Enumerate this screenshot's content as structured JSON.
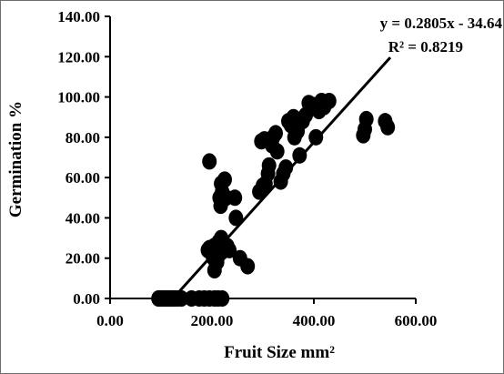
{
  "chart_data": {
    "type": "scatter",
    "title": "",
    "xlabel": "Fruit Size mm²",
    "ylabel": "Germination %",
    "xlim": [
      0,
      600
    ],
    "ylim": [
      0,
      140
    ],
    "xticks": [
      "0.00",
      "200.00",
      "400.00",
      "600.00"
    ],
    "yticks": [
      "0.00",
      "20.00",
      "40.00",
      "60.00",
      "80.00",
      "100.00",
      "120.00",
      "140.00"
    ],
    "grid": false,
    "legend": "none",
    "marker_color": "#000000",
    "trendline": {
      "equation": "y = 0.2805x - 34.64",
      "r_squared": "R² = 0.8219",
      "slope": 0.2805,
      "intercept": -34.64,
      "x_range": [
        123.5,
        550
      ]
    },
    "series": [
      {
        "points": [
          [
            95,
            0
          ],
          [
            100,
            0
          ],
          [
            105,
            0
          ],
          [
            110,
            0
          ],
          [
            115,
            0
          ],
          [
            118,
            0
          ],
          [
            122,
            0
          ],
          [
            127,
            0
          ],
          [
            133,
            0
          ],
          [
            140,
            0
          ],
          [
            160,
            0
          ],
          [
            175,
            0
          ],
          [
            185,
            0
          ],
          [
            195,
            0
          ],
          [
            205,
            0
          ],
          [
            212,
            0
          ],
          [
            220,
            0
          ],
          [
            195,
            68
          ],
          [
            195,
            25
          ],
          [
            192,
            24
          ],
          [
            200,
            22
          ],
          [
            203,
            20
          ],
          [
            204,
            26
          ],
          [
            205,
            14
          ],
          [
            210,
            18
          ],
          [
            212,
            21
          ],
          [
            213,
            28
          ],
          [
            215,
            24
          ],
          [
            218,
            30
          ],
          [
            219,
            23
          ],
          [
            220,
            25
          ],
          [
            215,
            50
          ],
          [
            217,
            46
          ],
          [
            218,
            57
          ],
          [
            220,
            53
          ],
          [
            222,
            49
          ],
          [
            225,
            59
          ],
          [
            228,
            50
          ],
          [
            230,
            26
          ],
          [
            234,
            24
          ],
          [
            245,
            50
          ],
          [
            247,
            40
          ],
          [
            255,
            20
          ],
          [
            270,
            16
          ],
          [
            293,
            53
          ],
          [
            297,
            78
          ],
          [
            300,
            56
          ],
          [
            303,
            79
          ],
          [
            305,
            57
          ],
          [
            310,
            62
          ],
          [
            312,
            66
          ],
          [
            318,
            76
          ],
          [
            320,
            80
          ],
          [
            325,
            82
          ],
          [
            328,
            73
          ],
          [
            335,
            58
          ],
          [
            340,
            62
          ],
          [
            345,
            65
          ],
          [
            350,
            88
          ],
          [
            355,
            86
          ],
          [
            360,
            90
          ],
          [
            362,
            80
          ],
          [
            368,
            83
          ],
          [
            372,
            71
          ],
          [
            378,
            88
          ],
          [
            384,
            91
          ],
          [
            390,
            97
          ],
          [
            398,
            96
          ],
          [
            404,
            80
          ],
          [
            410,
            93
          ],
          [
            415,
            98
          ],
          [
            420,
            95
          ],
          [
            424,
            97
          ],
          [
            430,
            98
          ],
          [
            497,
            81
          ],
          [
            500,
            84
          ],
          [
            503,
            89
          ],
          [
            540,
            88
          ],
          [
            545,
            85
          ]
        ]
      }
    ]
  }
}
